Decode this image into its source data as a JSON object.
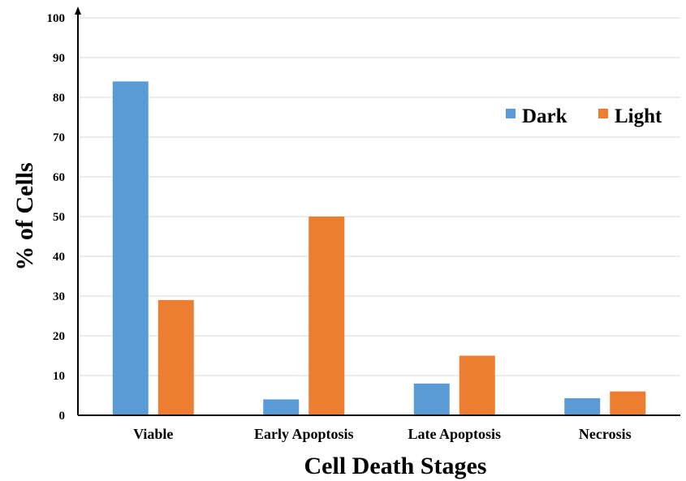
{
  "chart_data": {
    "type": "bar",
    "title": "",
    "xlabel": "Cell Death Stages",
    "ylabel": "% of Cells",
    "ylim": [
      0,
      100
    ],
    "yticks": [
      0,
      10,
      20,
      30,
      40,
      50,
      60,
      70,
      80,
      90,
      100
    ],
    "categories": [
      "Viable",
      "Early Apoptosis",
      "Late Apoptosis",
      "Necrosis"
    ],
    "series": [
      {
        "name": "Dark",
        "color": "#5b9bd5",
        "values": [
          84,
          4,
          8,
          4.3
        ]
      },
      {
        "name": "Light",
        "color": "#ed7d31",
        "values": [
          29,
          50,
          15,
          6
        ]
      }
    ],
    "grid": true,
    "legend_position": "top-right"
  }
}
